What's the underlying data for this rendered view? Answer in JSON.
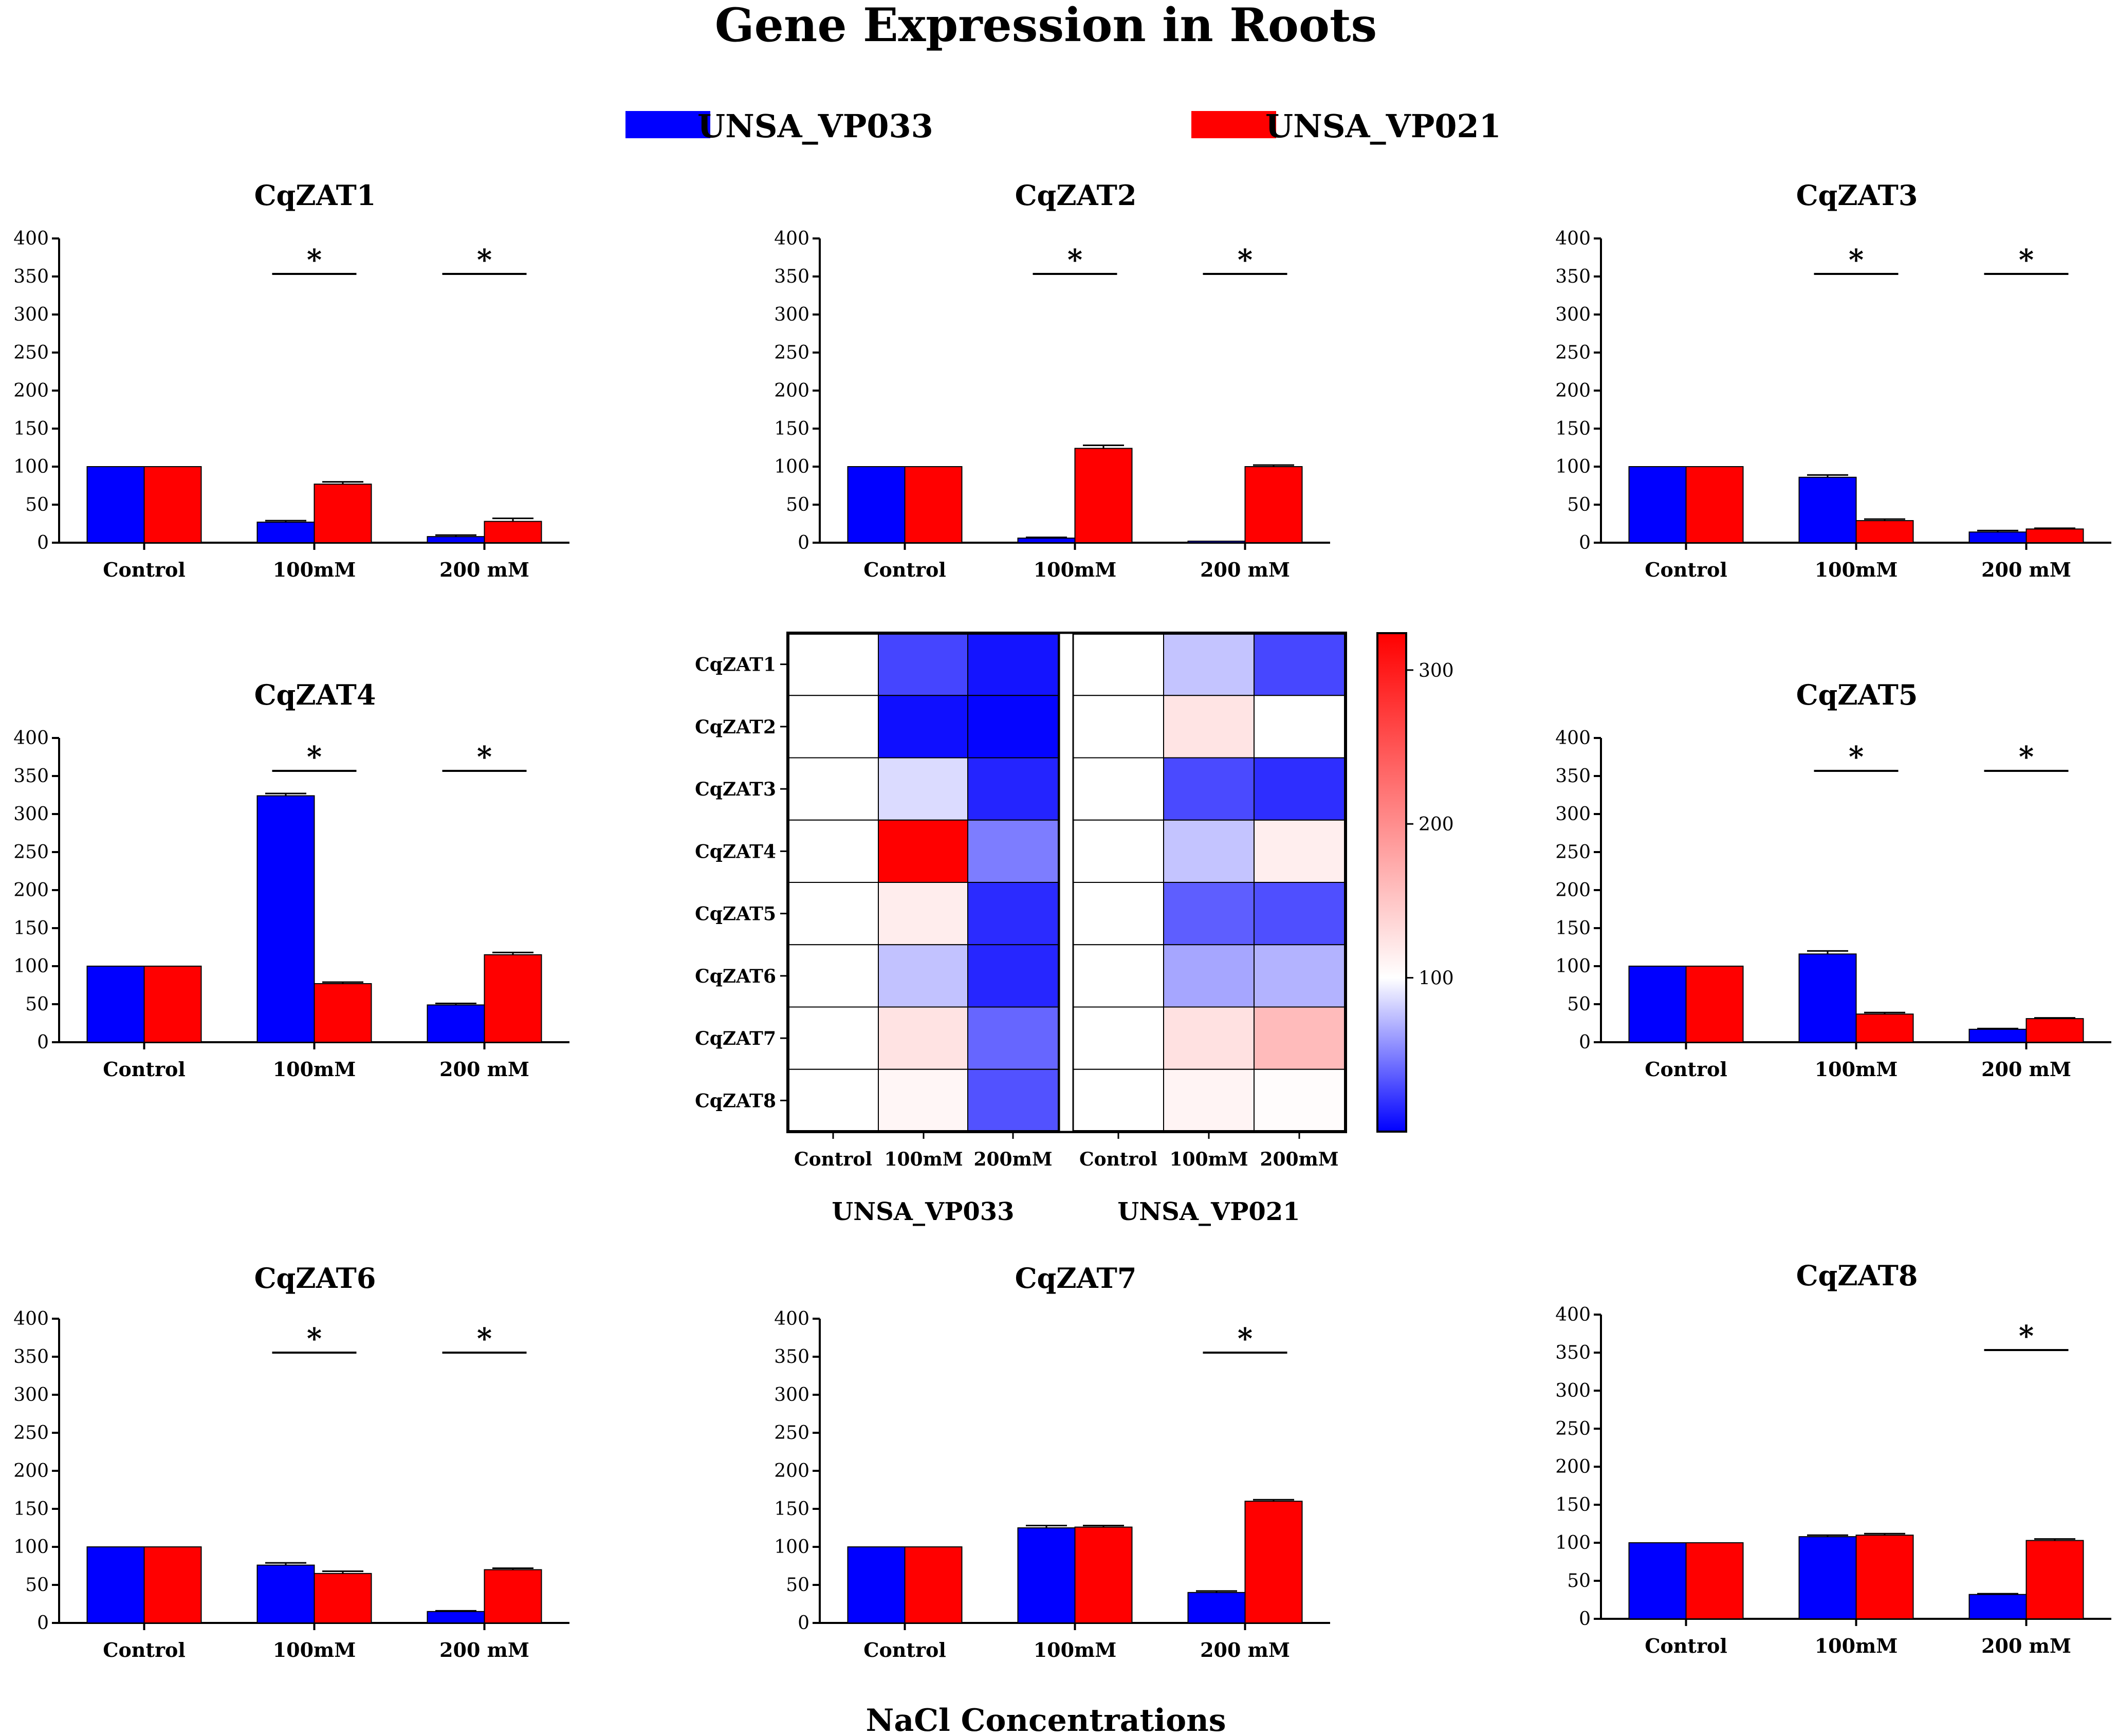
{
  "title": "Gene Expression in Roots",
  "xlabel": "NaCl Concentrations",
  "colors": {
    "UNSA_VP033": "#0000ff",
    "UNSA_VP021": "#ff0000"
  },
  "legend": [
    {
      "name": "UNSA_VP033",
      "color": "#0000ff"
    },
    {
      "name": "UNSA_VP021",
      "color": "#ff0000"
    }
  ],
  "chart_data": [
    {
      "type": "bar",
      "title": "CqZAT1",
      "categories": [
        "Control",
        "100mM",
        "200 mM"
      ],
      "ylim": [
        0,
        400
      ],
      "yticks": [
        0,
        50,
        100,
        150,
        200,
        250,
        300,
        350,
        400
      ],
      "series": [
        {
          "name": "UNSA_VP033",
          "values": [
            100,
            27,
            8
          ],
          "errors": [
            0,
            2,
            2
          ]
        },
        {
          "name": "UNSA_VP021",
          "values": [
            100,
            77,
            28
          ],
          "errors": [
            0,
            3,
            4
          ]
        }
      ],
      "significance": [
        1,
        2
      ],
      "significance_label": "*"
    },
    {
      "type": "bar",
      "title": "CqZAT2",
      "categories": [
        "Control",
        "100mM",
        "200 mM"
      ],
      "ylim": [
        0,
        400
      ],
      "yticks": [
        0,
        50,
        100,
        150,
        200,
        250,
        300,
        350,
        400
      ],
      "series": [
        {
          "name": "UNSA_VP033",
          "values": [
            100,
            6,
            2
          ],
          "errors": [
            0,
            1,
            0
          ]
        },
        {
          "name": "UNSA_VP021",
          "values": [
            100,
            124,
            100
          ],
          "errors": [
            0,
            4,
            2
          ]
        }
      ],
      "significance": [
        1,
        2
      ],
      "significance_label": "*"
    },
    {
      "type": "bar",
      "title": "CqZAT3",
      "categories": [
        "Control",
        "100mM",
        "200 mM"
      ],
      "ylim": [
        0,
        400
      ],
      "yticks": [
        0,
        50,
        100,
        150,
        200,
        250,
        300,
        350,
        400
      ],
      "series": [
        {
          "name": "UNSA_VP033",
          "values": [
            100,
            86,
            14
          ],
          "errors": [
            0,
            3,
            2
          ]
        },
        {
          "name": "UNSA_VP021",
          "values": [
            100,
            29,
            18
          ],
          "errors": [
            0,
            2,
            1
          ]
        }
      ],
      "significance": [
        1,
        2
      ],
      "significance_label": "*"
    },
    {
      "type": "bar",
      "title": "CqZAT4",
      "categories": [
        "Control",
        "100mM",
        "200 mM"
      ],
      "ylim": [
        0,
        400
      ],
      "yticks": [
        0,
        50,
        100,
        150,
        200,
        250,
        300,
        350,
        400
      ],
      "series": [
        {
          "name": "UNSA_VP033",
          "values": [
            100,
            324,
            49
          ],
          "errors": [
            0,
            3,
            2
          ]
        },
        {
          "name": "UNSA_VP021",
          "values": [
            100,
            77,
            115
          ],
          "errors": [
            0,
            2,
            3
          ]
        }
      ],
      "significance": [
        1,
        2
      ],
      "significance_label": "*"
    },
    {
      "type": "bar",
      "title": "CqZAT5",
      "categories": [
        "Control",
        "100mM",
        "200 mM"
      ],
      "ylim": [
        0,
        400
      ],
      "yticks": [
        0,
        50,
        100,
        150,
        200,
        250,
        300,
        350,
        400
      ],
      "series": [
        {
          "name": "UNSA_VP033",
          "values": [
            100,
            116,
            17
          ],
          "errors": [
            0,
            4,
            1
          ]
        },
        {
          "name": "UNSA_VP021",
          "values": [
            100,
            37,
            31
          ],
          "errors": [
            0,
            2,
            1
          ]
        }
      ],
      "significance": [
        1,
        2
      ],
      "significance_label": "*"
    },
    {
      "type": "bar",
      "title": "CqZAT6",
      "categories": [
        "Control",
        "100mM",
        "200 mM"
      ],
      "ylim": [
        0,
        400
      ],
      "yticks": [
        0,
        50,
        100,
        150,
        200,
        250,
        300,
        350,
        400
      ],
      "series": [
        {
          "name": "UNSA_VP033",
          "values": [
            100,
            76,
            15
          ],
          "errors": [
            0,
            3,
            1
          ]
        },
        {
          "name": "UNSA_VP021",
          "values": [
            100,
            65,
            70
          ],
          "errors": [
            0,
            3,
            2
          ]
        }
      ],
      "significance": [
        1,
        2
      ],
      "significance_label": "*"
    },
    {
      "type": "bar",
      "title": "CqZAT7",
      "categories": [
        "Control",
        "100mM",
        "200 mM"
      ],
      "ylim": [
        0,
        400
      ],
      "yticks": [
        0,
        50,
        100,
        150,
        200,
        250,
        300,
        350,
        400
      ],
      "series": [
        {
          "name": "UNSA_VP033",
          "values": [
            100,
            125,
            40
          ],
          "errors": [
            0,
            3,
            2
          ]
        },
        {
          "name": "UNSA_VP021",
          "values": [
            100,
            126,
            160
          ],
          "errors": [
            0,
            2,
            2
          ]
        }
      ],
      "significance": [
        2
      ],
      "significance_label": "*"
    },
    {
      "type": "bar",
      "title": "CqZAT8",
      "categories": [
        "Control",
        "100mM",
        "200 mM"
      ],
      "ylim": [
        0,
        400
      ],
      "yticks": [
        0,
        50,
        100,
        150,
        200,
        250,
        300,
        350,
        400
      ],
      "series": [
        {
          "name": "UNSA_VP033",
          "values": [
            100,
            108,
            32
          ],
          "errors": [
            0,
            2,
            1
          ]
        },
        {
          "name": "UNSA_VP021",
          "values": [
            100,
            110,
            103
          ],
          "errors": [
            0,
            2,
            2
          ]
        }
      ],
      "significance": [
        2
      ],
      "significance_label": "*"
    },
    {
      "type": "heatmap",
      "rows": [
        "CqZAT1",
        "CqZAT2",
        "CqZAT3",
        "CqZAT4",
        "CqZAT5",
        "CqZAT6",
        "CqZAT7",
        "CqZAT8"
      ],
      "columns": [
        "Control",
        "100mM",
        "200mM",
        "Control",
        "100mM",
        "200mM"
      ],
      "groups": [
        {
          "name": "UNSA_VP033",
          "columns": [
            0,
            1,
            2
          ]
        },
        {
          "name": "UNSA_VP021",
          "columns": [
            3,
            4,
            5
          ]
        }
      ],
      "values": [
        [
          100,
          27,
          8,
          100,
          77,
          28
        ],
        [
          100,
          6,
          2,
          100,
          124,
          100
        ],
        [
          100,
          86,
          14,
          100,
          29,
          18
        ],
        [
          100,
          324,
          49,
          100,
          77,
          115
        ],
        [
          100,
          116,
          17,
          100,
          37,
          31
        ],
        [
          100,
          76,
          15,
          100,
          65,
          70
        ],
        [
          100,
          125,
          40,
          100,
          126,
          160
        ],
        [
          100,
          108,
          32,
          100,
          110,
          103
        ]
      ],
      "colorscale": {
        "min": 0,
        "mid": 100,
        "max": 324,
        "low": "#0000ff",
        "midcolor": "#ffffff",
        "high": "#ff0000"
      },
      "colorbar_ticks": [
        100,
        200,
        300
      ]
    }
  ]
}
